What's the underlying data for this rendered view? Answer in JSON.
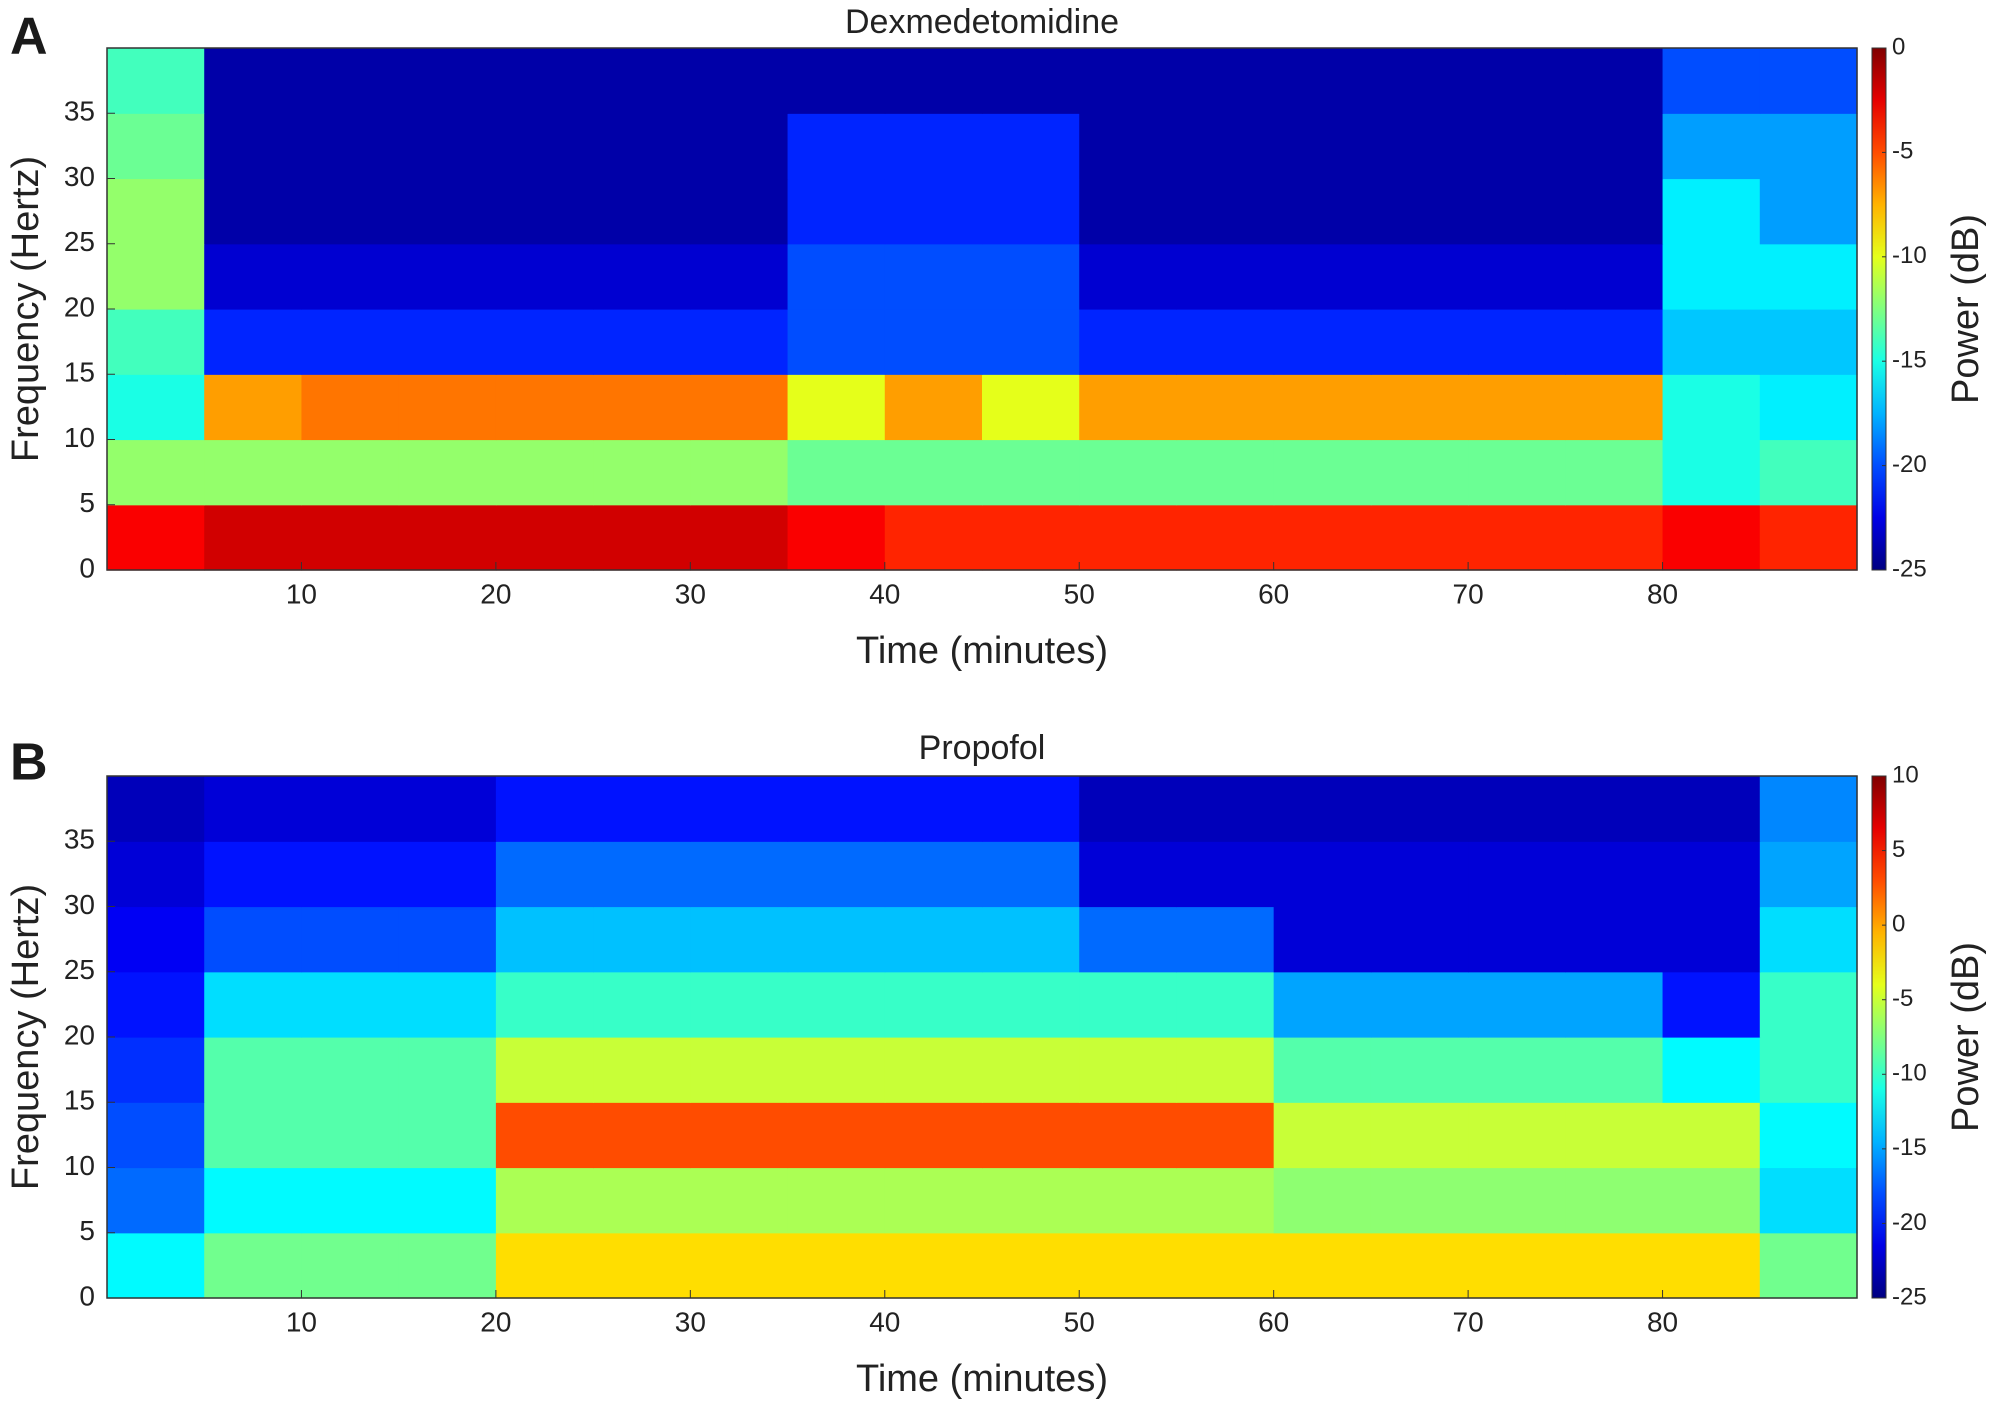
{
  "chart_data": [
    {
      "type": "heatmap",
      "panel_label": "A",
      "title": "Dexmedetomidine",
      "xlabel": "Time (minutes)",
      "ylabel": "Frequency (Hertz)",
      "colorbar_label": "Power (dB)",
      "colormap": "jet",
      "xbins": [
        0,
        5,
        10,
        15,
        20,
        25,
        30,
        35,
        40,
        45,
        50,
        55,
        60,
        65,
        70,
        75,
        80,
        85,
        90
      ],
      "ybins": [
        0,
        5,
        10,
        15,
        20,
        25,
        30,
        35,
        40
      ],
      "z": [
        [
          -3,
          -2,
          -2,
          -2,
          -2,
          -2,
          -2,
          -3,
          -4,
          -4,
          -4,
          -4,
          -4,
          -4,
          -4,
          -4,
          -3,
          -4
        ],
        [
          -12,
          -12,
          -12,
          -12,
          -12,
          -12,
          -12,
          -13,
          -13,
          -13,
          -13,
          -13,
          -13,
          -13,
          -13,
          -13,
          -15,
          -14
        ],
        [
          -15,
          -7,
          -6,
          -6,
          -6,
          -6,
          -6,
          -10,
          -7,
          -10,
          -7,
          -7,
          -7,
          -7,
          -7,
          -7,
          -15,
          -16
        ],
        [
          -14,
          -21,
          -21,
          -21,
          -21,
          -21,
          -21,
          -20,
          -20,
          -20,
          -21,
          -21,
          -21,
          -21,
          -21,
          -21,
          -17,
          -17
        ],
        [
          -12,
          -23,
          -23,
          -23,
          -23,
          -23,
          -23,
          -20,
          -20,
          -20,
          -23,
          -23,
          -23,
          -23,
          -23,
          -23,
          -16,
          -16
        ],
        [
          -12,
          -24,
          -24,
          -24,
          -24,
          -24,
          -24,
          -21,
          -21,
          -21,
          -24,
          -24,
          -24,
          -24,
          -24,
          -24,
          -16,
          -18
        ],
        [
          -13,
          -24,
          -24,
          -24,
          -24,
          -24,
          -24,
          -21,
          -21,
          -21,
          -24,
          -24,
          -24,
          -24,
          -24,
          -24,
          -18,
          -18
        ],
        [
          -14,
          -24,
          -24,
          -24,
          -24,
          -24,
          -24,
          -24,
          -24,
          -24,
          -24,
          -24,
          -24,
          -24,
          -24,
          -24,
          -20,
          -20
        ]
      ],
      "xlim": [
        0,
        90
      ],
      "ylim": [
        0,
        40
      ],
      "xticks": [
        10,
        20,
        30,
        40,
        50,
        60,
        70,
        80
      ],
      "yticks": [
        0,
        5,
        10,
        15,
        20,
        25,
        30,
        35
      ],
      "zlim": [
        -25,
        0
      ],
      "zticks": [
        0,
        -5,
        -10,
        -15,
        -20,
        -25
      ]
    },
    {
      "type": "heatmap",
      "panel_label": "B",
      "title": "Propofol",
      "xlabel": "Time (minutes)",
      "ylabel": "Frequency (Hertz)",
      "colorbar_label": "Power (dB)",
      "colormap": "jet",
      "xbins": [
        0,
        5,
        10,
        15,
        20,
        25,
        30,
        35,
        40,
        45,
        50,
        55,
        60,
        65,
        70,
        75,
        80,
        85,
        90
      ],
      "ybins": [
        0,
        5,
        10,
        15,
        20,
        25,
        30,
        35,
        40
      ],
      "z": [
        [
          -12,
          -8,
          -8,
          -8,
          -2,
          -2,
          -2,
          -2,
          -2,
          -2,
          -2,
          -2,
          -2,
          -2,
          -2,
          -2,
          -2,
          -8
        ],
        [
          -17,
          -12,
          -12,
          -12,
          -6,
          -6,
          -6,
          -6,
          -6,
          -6,
          -6,
          -6,
          -7,
          -7,
          -7,
          -7,
          -7,
          -13
        ],
        [
          -18,
          -9,
          -9,
          -9,
          3,
          3,
          3,
          3,
          3,
          3,
          3,
          3,
          -5,
          -5,
          -5,
          -5,
          -5,
          -12
        ],
        [
          -19,
          -9,
          -9,
          -9,
          -5,
          -5,
          -5,
          -5,
          -5,
          -5,
          -5,
          -5,
          -9,
          -9,
          -9,
          -9,
          -12,
          -10
        ],
        [
          -20,
          -13,
          -13,
          -13,
          -10,
          -10,
          -10,
          -10,
          -10,
          -10,
          -10,
          -10,
          -15,
          -15,
          -15,
          -15,
          -20,
          -10
        ],
        [
          -21,
          -18,
          -18,
          -18,
          -14,
          -14,
          -14,
          -14,
          -14,
          -14,
          -17,
          -17,
          -22,
          -22,
          -22,
          -22,
          -22,
          -13
        ],
        [
          -22,
          -20,
          -20,
          -20,
          -17,
          -17,
          -17,
          -17,
          -17,
          -17,
          -22,
          -22,
          -22,
          -22,
          -22,
          -22,
          -22,
          -15
        ],
        [
          -23,
          -22,
          -22,
          -22,
          -20,
          -20,
          -20,
          -20,
          -20,
          -20,
          -23,
          -23,
          -23,
          -23,
          -23,
          -23,
          -23,
          -16
        ]
      ],
      "xlim": [
        0,
        90
      ],
      "ylim": [
        0,
        40
      ],
      "xticks": [
        10,
        20,
        30,
        40,
        50,
        60,
        70,
        80
      ],
      "yticks": [
        0,
        5,
        10,
        15,
        20,
        25,
        30,
        35
      ],
      "zlim": [
        -25,
        10
      ],
      "zticks": [
        10,
        5,
        0,
        -5,
        -10,
        -15,
        -20,
        -25
      ]
    }
  ]
}
